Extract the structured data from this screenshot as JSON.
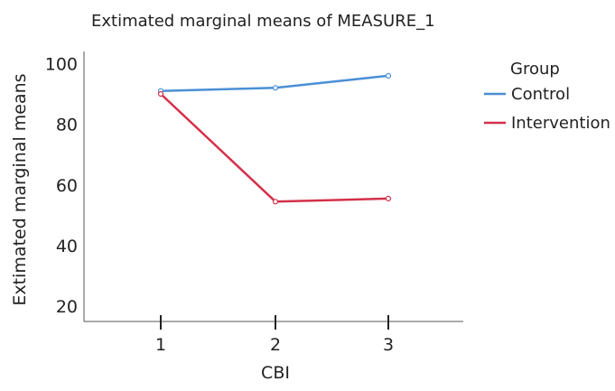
{
  "chart_data": {
    "type": "line",
    "title": "Extimated marginal means of MEASURE_1",
    "xlabel": "CBI",
    "ylabel": "Extimated marginal means",
    "categories": [
      "1",
      "2",
      "3"
    ],
    "yticks": [
      "20",
      "40",
      "60",
      "80",
      "100"
    ],
    "ylim": [
      15,
      104
    ],
    "legend": {
      "title": "Group",
      "position": "right"
    },
    "series": [
      {
        "name": "Control",
        "color": "#4a8fd6",
        "values": [
          91.0,
          92.0,
          96.0
        ]
      },
      {
        "name": "Intervention",
        "color": "#d4304a",
        "values": [
          90.0,
          54.5,
          55.5
        ]
      }
    ]
  }
}
